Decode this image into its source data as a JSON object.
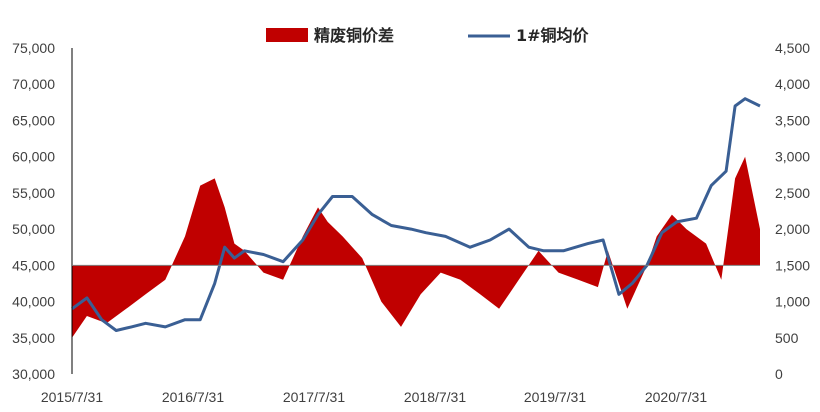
{
  "chart_data": {
    "type": "bar+line",
    "legend": [
      {
        "label": "精废铜价差",
        "color": "#c00000",
        "kind": "area"
      },
      {
        "label": "1#铜均价",
        "color": "#3a5f94",
        "kind": "line"
      }
    ],
    "legend_position": "top-center",
    "grid": false,
    "x_axis": {
      "ticks": [
        "2015/7/31",
        "2016/7/31",
        "2017/7/31",
        "2018/7/31",
        "2019/7/31",
        "2020/7/31"
      ],
      "range": [
        "2015-07-31",
        "2021-05-31"
      ]
    },
    "y_left": {
      "ticks": [
        "30,000",
        "35,000",
        "40,000",
        "45,000",
        "50,000",
        "55,000",
        "60,000",
        "65,000",
        "70,000",
        "75,000"
      ],
      "range": [
        30000,
        75000
      ]
    },
    "y_right": {
      "ticks": [
        "0",
        "500",
        "1,000",
        "1,500",
        "2,000",
        "2,500",
        "3,000",
        "3,500",
        "4,000",
        "4,500"
      ],
      "range": [
        0,
        4500
      ]
    },
    "series": [
      {
        "name": "精废铜价差",
        "axis": "right",
        "baseline": 1500,
        "x": [
          "2015-07-31",
          "2015-09-15",
          "2015-11-15",
          "2016-01-15",
          "2016-03-15",
          "2016-05-15",
          "2016-07-15",
          "2016-08-31",
          "2016-10-15",
          "2016-11-15",
          "2016-12-15",
          "2017-01-15",
          "2017-03-15",
          "2017-05-15",
          "2017-07-15",
          "2017-08-31",
          "2017-09-30",
          "2017-11-15",
          "2018-01-15",
          "2018-03-15",
          "2018-05-15",
          "2018-07-15",
          "2018-09-15",
          "2018-11-15",
          "2019-01-15",
          "2019-03-15",
          "2019-05-15",
          "2019-07-15",
          "2019-09-15",
          "2019-11-15",
          "2020-01-15",
          "2020-02-15",
          "2020-04-15",
          "2020-06-15",
          "2020-07-15",
          "2020-08-31",
          "2020-10-15",
          "2020-12-15",
          "2021-01-31",
          "2021-03-15",
          "2021-04-15",
          "2021-05-31"
        ],
        "values": [
          500,
          800,
          700,
          900,
          1100,
          1300,
          1900,
          2600,
          2700,
          2300,
          1800,
          1700,
          1400,
          1300,
          1900,
          2300,
          2100,
          1900,
          1600,
          1000,
          650,
          1100,
          1400,
          1300,
          1100,
          900,
          1300,
          1700,
          1400,
          1300,
          1200,
          1700,
          900,
          1500,
          1900,
          2200,
          2000,
          1800,
          1300,
          2700,
          3000,
          2000
        ]
      },
      {
        "name": "1#铜均价",
        "axis": "left",
        "x": [
          "2015-07-31",
          "2015-09-15",
          "2015-10-31",
          "2015-12-15",
          "2016-01-31",
          "2016-03-15",
          "2016-05-15",
          "2016-07-15",
          "2016-08-31",
          "2016-10-15",
          "2016-11-15",
          "2016-12-15",
          "2017-01-15",
          "2017-03-15",
          "2017-05-15",
          "2017-07-15",
          "2017-08-31",
          "2017-10-15",
          "2017-12-15",
          "2018-02-15",
          "2018-04-15",
          "2018-06-15",
          "2018-07-31",
          "2018-09-30",
          "2018-12-15",
          "2019-02-15",
          "2019-04-15",
          "2019-06-15",
          "2019-07-31",
          "2019-09-30",
          "2019-12-15",
          "2020-01-31",
          "2020-03-20",
          "2020-04-30",
          "2020-06-15",
          "2020-07-31",
          "2020-09-15",
          "2020-11-15",
          "2020-12-31",
          "2021-02-15",
          "2021-03-15",
          "2021-04-15",
          "2021-05-31"
        ],
        "values": [
          39000,
          40500,
          37500,
          36000,
          36500,
          37000,
          36500,
          37500,
          37500,
          42500,
          47500,
          46000,
          47000,
          46500,
          45500,
          48500,
          52000,
          54500,
          54500,
          52000,
          50500,
          50000,
          49500,
          49000,
          47500,
          48500,
          50000,
          47500,
          47000,
          47000,
          48000,
          48500,
          41000,
          42500,
          45000,
          49500,
          51000,
          51500,
          56000,
          58000,
          67000,
          68000,
          67000
        ]
      }
    ]
  }
}
